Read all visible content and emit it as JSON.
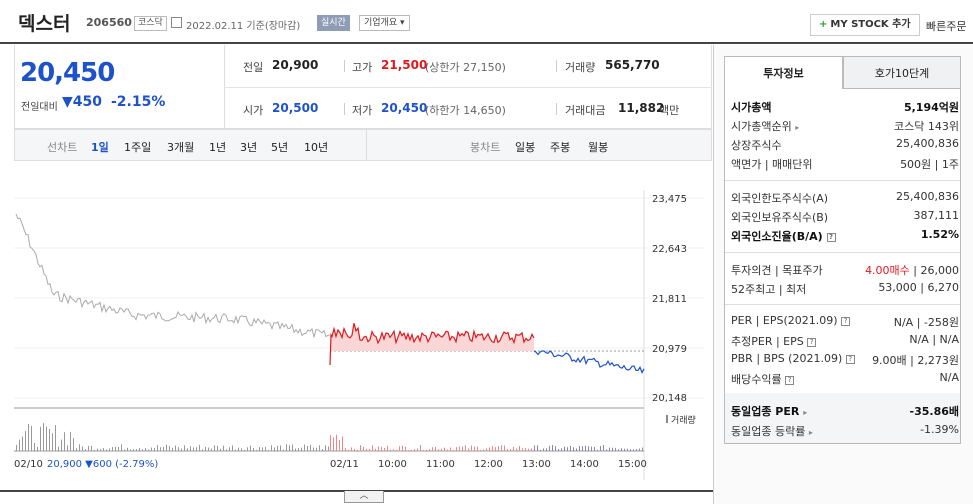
{
  "header": {
    "name": "덱스터",
    "code": "206560",
    "market": "코스닥",
    "date_text": "2022.02.11 기준(장마감)",
    "realtime": "실시간",
    "company_overview": "기업개요",
    "mystock": "MY STOCK 추가",
    "quick_order": "빠른주문"
  },
  "price": {
    "current": "20,450",
    "change_label": "전일대비",
    "change": "450",
    "change_pct": "-2.15%"
  },
  "quote": {
    "prev_label": "전일",
    "prev": "20,900",
    "high_label": "고가",
    "high": "21,500",
    "upper_limit": "(상한가 27,150)",
    "volume_label": "거래량",
    "volume": "565,770",
    "open_label": "시가",
    "open": "20,500",
    "low_label": "저가",
    "low": "20,450",
    "lower_limit": "(하한가 14,650)",
    "amount_label": "거래대금",
    "amount": "11,882",
    "amount_unit": "백만"
  },
  "periods": {
    "line_label": "선차트",
    "items": [
      "1일",
      "1주일",
      "3개월",
      "1년",
      "3년",
      "5년",
      "10년"
    ],
    "candle_label": "봉차트",
    "candles": [
      "일봉",
      "주봉",
      "월봉"
    ]
  },
  "chart": {
    "y_ticks": [
      "23,475",
      "22,643",
      "21,811",
      "20,979",
      "20,148"
    ],
    "x_ticks": [
      "02/10",
      "02/11",
      "10:00",
      "11:00",
      "12:00",
      "13:00",
      "14:00",
      "15:00"
    ],
    "volume_label": "거래량",
    "footer_text": "20,900 ▼600 (-2.79%)"
  },
  "tabs": {
    "invest": "투자정보",
    "orderbook": "호가10단계"
  },
  "invest": {
    "market_cap_label": "시가총액",
    "market_cap": "5,194억원",
    "cap_rank_label": "시가총액순위",
    "cap_rank": "코스닥 143위",
    "shares_label": "상장주식수",
    "shares": "25,400,836",
    "par_label": "액면가 | 매매단위",
    "par": "500원 | 1주",
    "foreign_limit_label": "외국인한도주식수(A)",
    "foreign_limit": "25,400,836",
    "foreign_hold_label": "외국인보유주식수(B)",
    "foreign_hold": "387,111",
    "foreign_rate_label": "외국인소진율(B/A)",
    "foreign_rate": "1.52%",
    "opinion_label": "투자의견 | 목표주가",
    "opinion": "4.00매수",
    "target": "26,000",
    "week52_label": "52주최고 | 최저",
    "week52": "53,000 | 6,270",
    "per_label": "PER | EPS(2021.09)",
    "per": "N/A | -258원",
    "est_per_label": "추정PER | EPS",
    "est_per": "N/A | N/A",
    "pbr_label": "PBR | BPS (2021.09)",
    "pbr": "9.00배 | 2,273원",
    "div_label": "배당수익률",
    "div": "N/A",
    "peer_per_label": "동일업종 PER",
    "peer_per": "-35.86배",
    "peer_rate_label": "동일업종 등락률",
    "peer_rate": "-1.39%"
  },
  "colors": {
    "up": "#e0191d",
    "down": "#1e52c8",
    "prev_day_line": "#aaaaaa"
  }
}
